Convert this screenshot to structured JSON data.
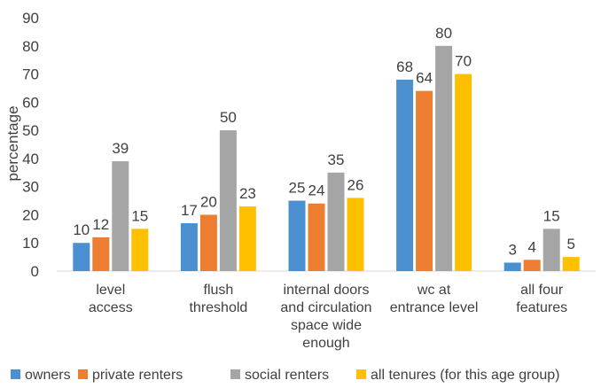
{
  "chart_data": {
    "type": "bar",
    "categories": [
      [
        "level",
        "access"
      ],
      [
        "flush",
        "threshold"
      ],
      [
        "internal doors",
        "and circulation",
        "space wide",
        "enough"
      ],
      [
        "wc at",
        "entrance level"
      ],
      [
        "all four",
        "features"
      ]
    ],
    "series": [
      {
        "name": "owners",
        "color": "#4a90d0",
        "values": [
          10,
          17,
          25,
          68,
          3
        ]
      },
      {
        "name": "private renters",
        "color": "#ed7d31",
        "values": [
          12,
          20,
          24,
          64,
          4
        ]
      },
      {
        "name": "social renters",
        "color": "#a5a5a5",
        "values": [
          39,
          50,
          35,
          80,
          15
        ]
      },
      {
        "name": "all tenures (for this age group)",
        "color": "#ffc000",
        "values": [
          15,
          23,
          26,
          70,
          5
        ]
      }
    ],
    "ylabel": "percentage",
    "ylim": [
      0,
      90
    ],
    "yticks": [
      0,
      10,
      20,
      30,
      40,
      50,
      60,
      70,
      80,
      90
    ],
    "grid": false,
    "legend": "bottom",
    "data_labels": true
  }
}
